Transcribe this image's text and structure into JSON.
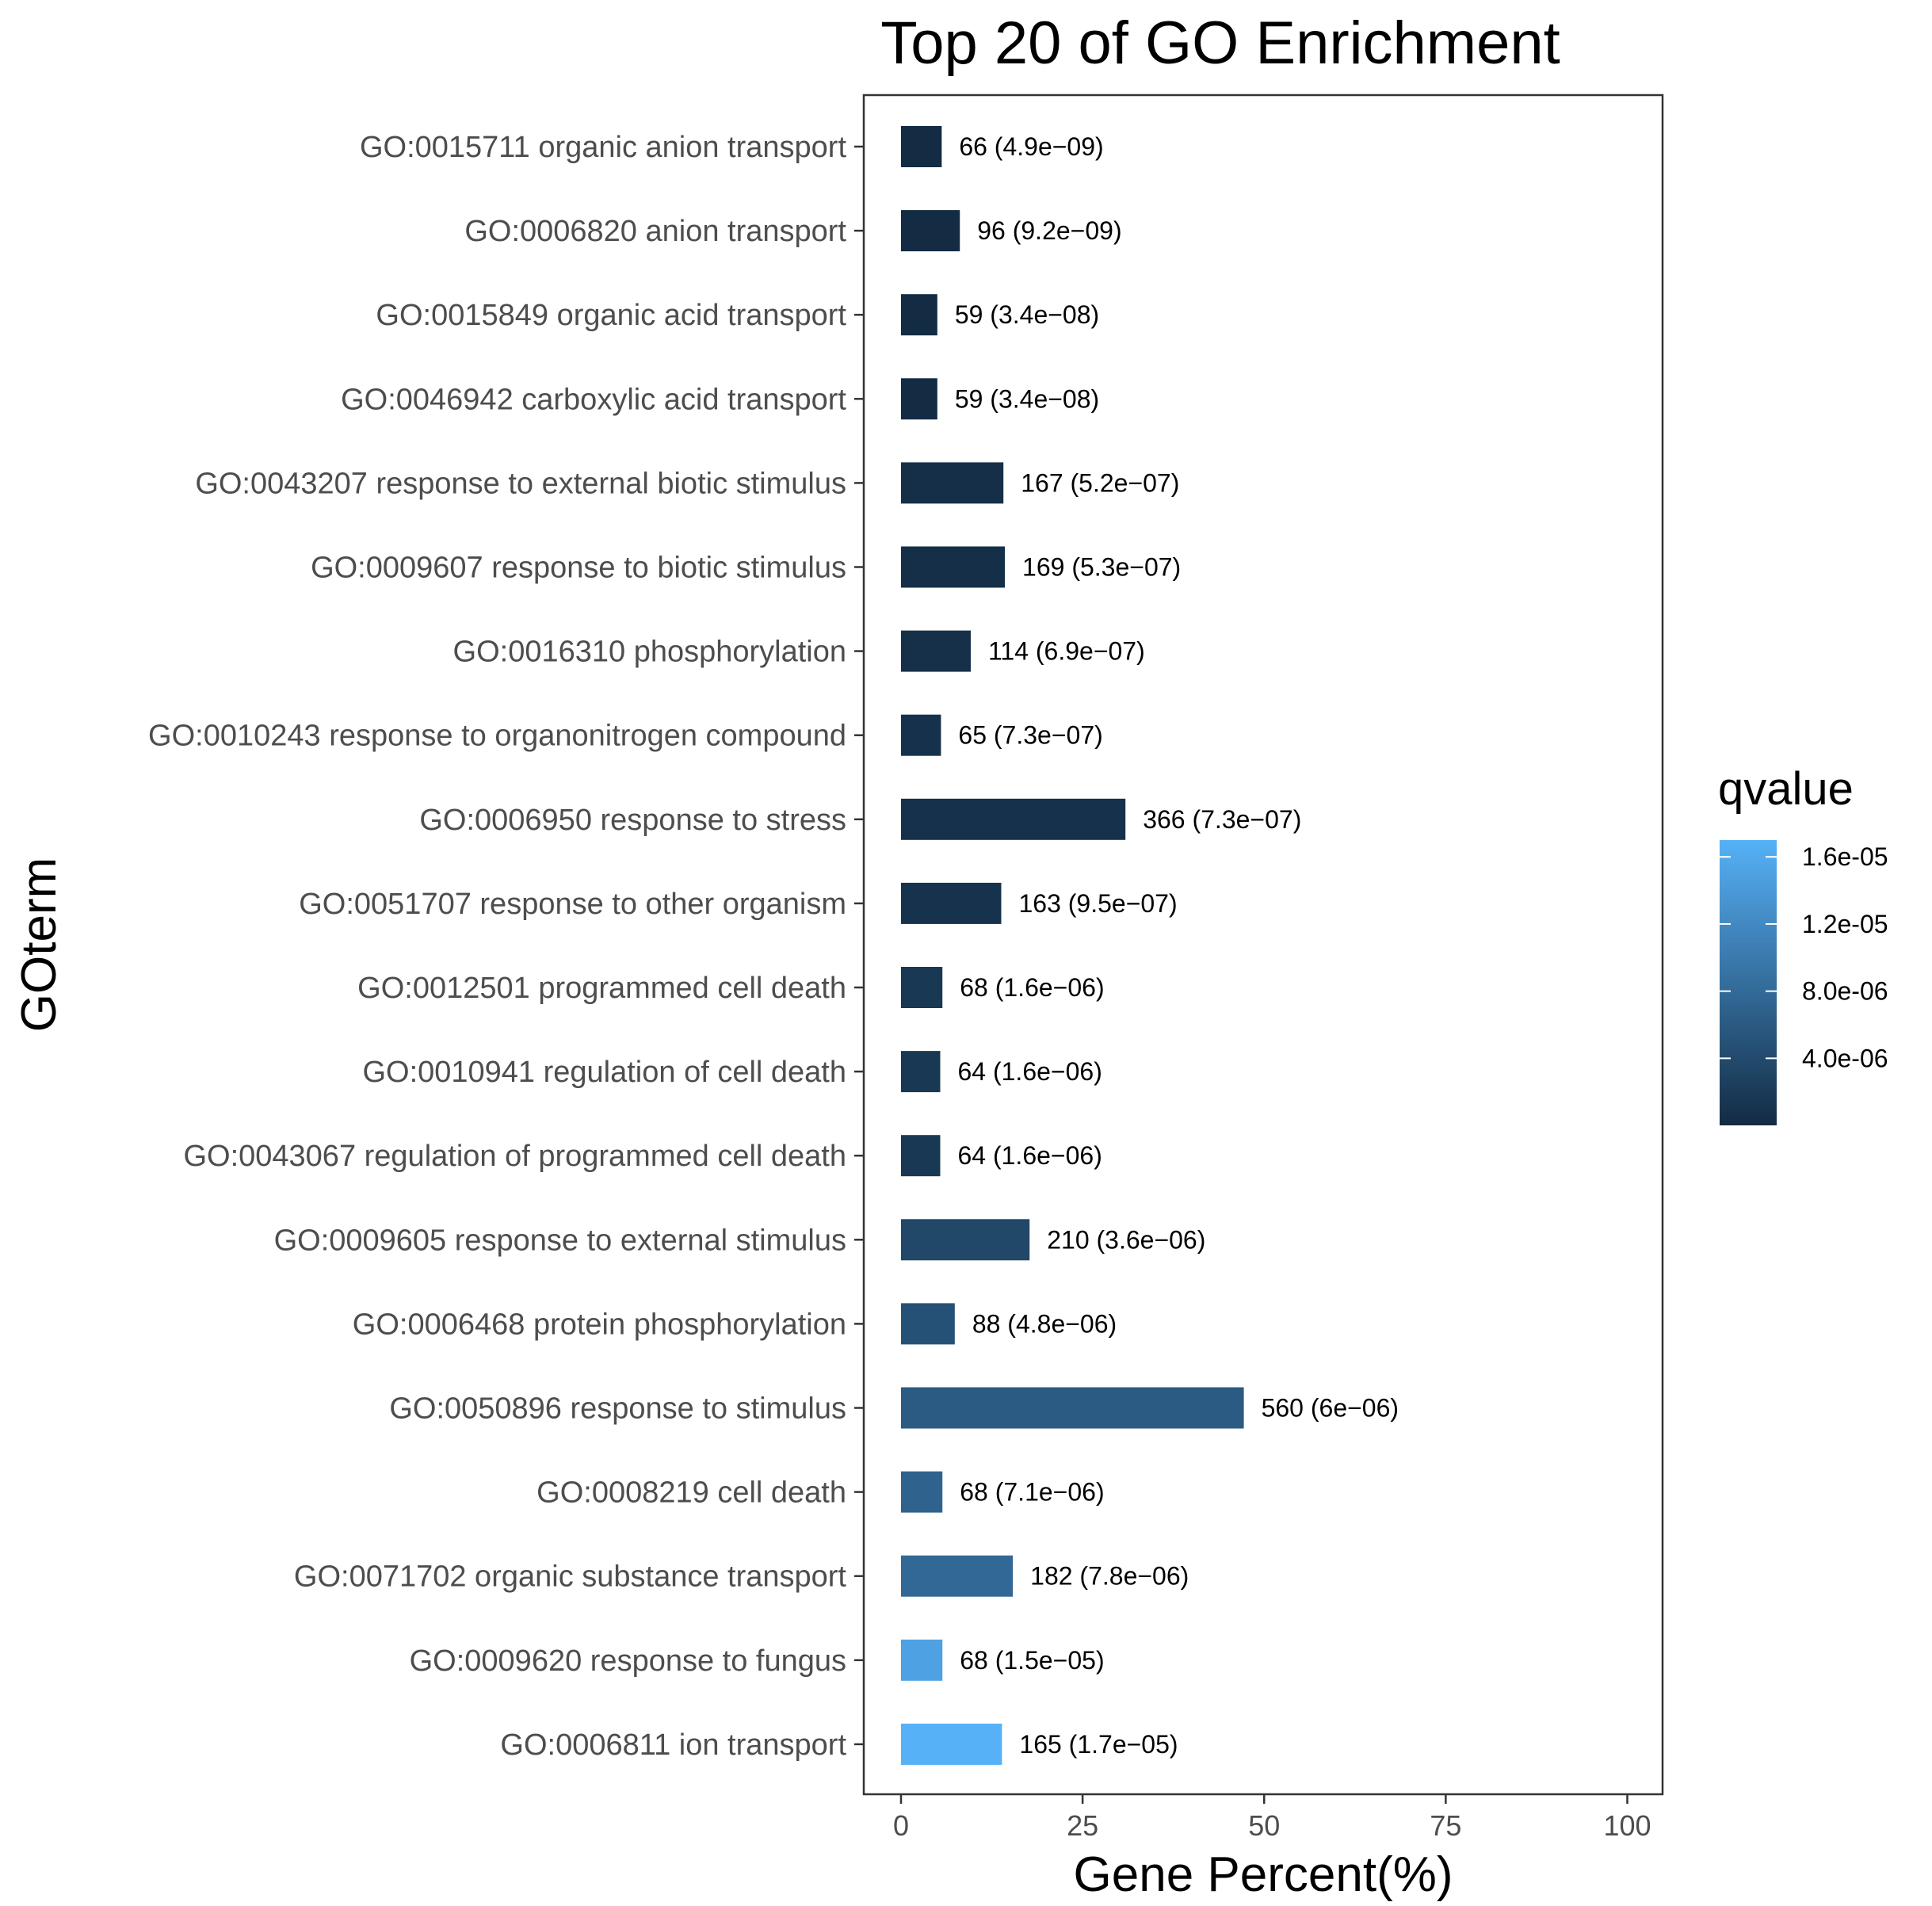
{
  "chart_data": {
    "type": "bar",
    "orientation": "horizontal",
    "title": "Top 20 of GO Enrichment",
    "xlabel": "Gene Percent(%)",
    "ylabel": "GOterm",
    "xlim": [
      0,
      100
    ],
    "x_ticks": [
      0,
      25,
      50,
      75,
      100
    ],
    "grid": false,
    "legend_title": "qvalue",
    "legend_placement": "right",
    "colors": {
      "low": "#132B43",
      "high": "#56B1F7"
    },
    "color_scale": {
      "min": 4.9e-09,
      "max": 1.7e-05
    },
    "legend_ticks": [
      {
        "value": 1.6e-05,
        "label": "1.6e-05"
      },
      {
        "value": 1.2e-05,
        "label": "1.2e-05"
      },
      {
        "value": 8e-06,
        "label": "8.0e-06"
      },
      {
        "value": 4e-06,
        "label": "4.0e-06"
      }
    ],
    "categories": [
      "GO:0015711 organic anion transport",
      "GO:0006820 anion transport",
      "GO:0015849 organic acid transport",
      "GO:0046942 carboxylic acid transport",
      "GO:0043207 response to external biotic stimulus",
      "GO:0009607 response to biotic stimulus",
      "GO:0016310 phosphorylation",
      "GO:0010243 response to organonitrogen compound",
      "GO:0006950 response to stress",
      "GO:0051707 response to other organism",
      "GO:0012501 programmed cell death",
      "GO:0010941 regulation of cell death",
      "GO:0043067 regulation of programmed cell death",
      "GO:0009605 response to external stimulus",
      "GO:0006468 protein phosphorylation",
      "GO:0050896 response to stimulus",
      "GO:0008219 cell death",
      "GO:0071702 organic substance transport",
      "GO:0009620 response to fungus",
      "GO:0006811 ion transport"
    ],
    "values": [
      5.6,
      8.1,
      5.0,
      5.0,
      14.1,
      14.3,
      9.6,
      5.5,
      30.9,
      13.8,
      5.7,
      5.4,
      5.4,
      17.7,
      7.4,
      47.2,
      5.7,
      15.4,
      5.7,
      13.9
    ],
    "qvalues": [
      4.9e-09,
      9.2e-09,
      3.4e-08,
      3.4e-08,
      5.2e-07,
      5.3e-07,
      6.9e-07,
      7.3e-07,
      7.3e-07,
      9.5e-07,
      1.6e-06,
      1.6e-06,
      1.6e-06,
      3.6e-06,
      4.8e-06,
      6e-06,
      7.1e-06,
      7.8e-06,
      1.5e-05,
      1.7e-05
    ],
    "bar_labels": [
      "66 (4.9e−09)",
      "96 (9.2e−09)",
      "59 (3.4e−08)",
      "59 (3.4e−08)",
      "167 (5.2e−07)",
      "169 (5.3e−07)",
      "114 (6.9e−07)",
      "65 (7.3e−07)",
      "366 (7.3e−07)",
      "163 (9.5e−07)",
      "68 (1.6e−06)",
      "64 (1.6e−06)",
      "64 (1.6e−06)",
      "210 (3.6e−06)",
      "88 (4.8e−06)",
      "560 (6e−06)",
      "68 (7.1e−06)",
      "182 (7.8e−06)",
      "68 (1.5e−05)",
      "165 (1.7e−05)"
    ]
  }
}
